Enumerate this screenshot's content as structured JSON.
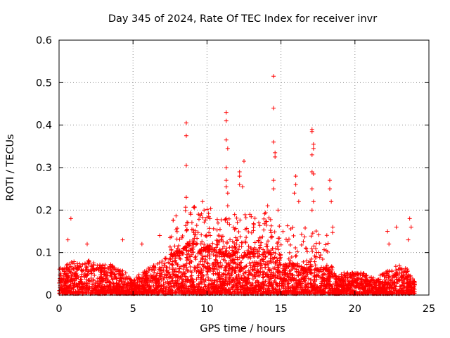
{
  "chart_data": {
    "type": "scatter",
    "title": "Day 345 of 2024, Rate Of TEC Index for receiver invr",
    "xlabel": "GPS time / hours",
    "ylabel": "ROTI / TECUs",
    "xlim": [
      0,
      25
    ],
    "ylim": [
      0,
      0.6
    ],
    "xticks": [
      0,
      5,
      10,
      15,
      20,
      25
    ],
    "yticks": [
      0,
      0.1,
      0.2,
      0.3,
      0.4,
      0.5,
      0.6
    ],
    "xtick_labels": [
      "0",
      "5",
      "10",
      "15",
      "20",
      "25"
    ],
    "ytick_labels": [
      "0",
      "0.1",
      "0.2",
      "0.3",
      "0.4",
      "0.5",
      "0.6"
    ],
    "grid": true,
    "marker": "+",
    "color": "#ff0000",
    "series_name": "ROTI",
    "baseline_envelope": [
      [
        0,
        0.06
      ],
      [
        0.5,
        0.07
      ],
      [
        1,
        0.08
      ],
      [
        1.5,
        0.07
      ],
      [
        2,
        0.08
      ],
      [
        2.5,
        0.075
      ],
      [
        3,
        0.07
      ],
      [
        3.5,
        0.07
      ],
      [
        4,
        0.06
      ],
      [
        4.5,
        0.05
      ],
      [
        5,
        0.03
      ],
      [
        5.5,
        0.05
      ],
      [
        6,
        0.06
      ],
      [
        6.5,
        0.07
      ],
      [
        7,
        0.08
      ],
      [
        7.5,
        0.09
      ],
      [
        8,
        0.1
      ],
      [
        8.5,
        0.11
      ],
      [
        9,
        0.12
      ],
      [
        9.5,
        0.1
      ],
      [
        10,
        0.11
      ],
      [
        10.5,
        0.1
      ],
      [
        11,
        0.1
      ],
      [
        11.5,
        0.09
      ],
      [
        12,
        0.1
      ],
      [
        12.5,
        0.09
      ],
      [
        13,
        0.1
      ],
      [
        13.5,
        0.09
      ],
      [
        14,
        0.1
      ],
      [
        14.5,
        0.09
      ],
      [
        15,
        0.07
      ],
      [
        15.5,
        0.07
      ],
      [
        16,
        0.07
      ],
      [
        16.5,
        0.06
      ],
      [
        17,
        0.06
      ],
      [
        17.5,
        0.06
      ],
      [
        18,
        0.06
      ],
      [
        18.5,
        0.05
      ],
      [
        19,
        0.05
      ],
      [
        19.5,
        0.05
      ],
      [
        20,
        0.05
      ],
      [
        20.5,
        0.05
      ],
      [
        21,
        0.04
      ],
      [
        21.5,
        0.04
      ],
      [
        22,
        0.05
      ],
      [
        22.5,
        0.06
      ],
      [
        23,
        0.07
      ],
      [
        23.5,
        0.06
      ],
      [
        24,
        0.03
      ]
    ],
    "notable_points": [
      [
        0.8,
        0.18
      ],
      [
        0.6,
        0.13
      ],
      [
        1.9,
        0.12
      ],
      [
        4.3,
        0.13
      ],
      [
        5.6,
        0.12
      ],
      [
        6.8,
        0.14
      ],
      [
        8.6,
        0.405
      ],
      [
        8.6,
        0.375
      ],
      [
        8.6,
        0.305
      ],
      [
        8.6,
        0.23
      ],
      [
        8.9,
        0.19
      ],
      [
        9.7,
        0.22
      ],
      [
        9.8,
        0.2
      ],
      [
        10.2,
        0.18
      ],
      [
        11.3,
        0.43
      ],
      [
        11.3,
        0.41
      ],
      [
        11.3,
        0.365
      ],
      [
        11.4,
        0.345
      ],
      [
        11.3,
        0.3
      ],
      [
        11.3,
        0.27
      ],
      [
        11.3,
        0.255
      ],
      [
        11.4,
        0.24
      ],
      [
        11.4,
        0.21
      ],
      [
        11.3,
        0.18
      ],
      [
        12.2,
        0.29
      ],
      [
        12.2,
        0.28
      ],
      [
        12.2,
        0.26
      ],
      [
        12.5,
        0.315
      ],
      [
        12.4,
        0.255
      ],
      [
        12.9,
        0.19
      ],
      [
        13.5,
        0.17
      ],
      [
        14.5,
        0.515
      ],
      [
        14.5,
        0.44
      ],
      [
        14.5,
        0.36
      ],
      [
        14.6,
        0.335
      ],
      [
        14.6,
        0.325
      ],
      [
        14.5,
        0.27
      ],
      [
        14.5,
        0.25
      ],
      [
        14.1,
        0.21
      ],
      [
        14.8,
        0.2
      ],
      [
        16,
        0.28
      ],
      [
        16,
        0.26
      ],
      [
        15.9,
        0.24
      ],
      [
        16.2,
        0.22
      ],
      [
        17.1,
        0.39
      ],
      [
        17.1,
        0.385
      ],
      [
        17.2,
        0.355
      ],
      [
        17.2,
        0.345
      ],
      [
        17.1,
        0.33
      ],
      [
        17.1,
        0.29
      ],
      [
        17.2,
        0.285
      ],
      [
        17.1,
        0.25
      ],
      [
        17.2,
        0.22
      ],
      [
        17.1,
        0.2
      ],
      [
        18.3,
        0.27
      ],
      [
        18.3,
        0.25
      ],
      [
        18.4,
        0.22
      ],
      [
        18.5,
        0.16
      ],
      [
        22.2,
        0.15
      ],
      [
        22.3,
        0.12
      ],
      [
        22.8,
        0.16
      ],
      [
        23.7,
        0.18
      ],
      [
        23.8,
        0.16
      ],
      [
        23.6,
        0.13
      ]
    ]
  }
}
